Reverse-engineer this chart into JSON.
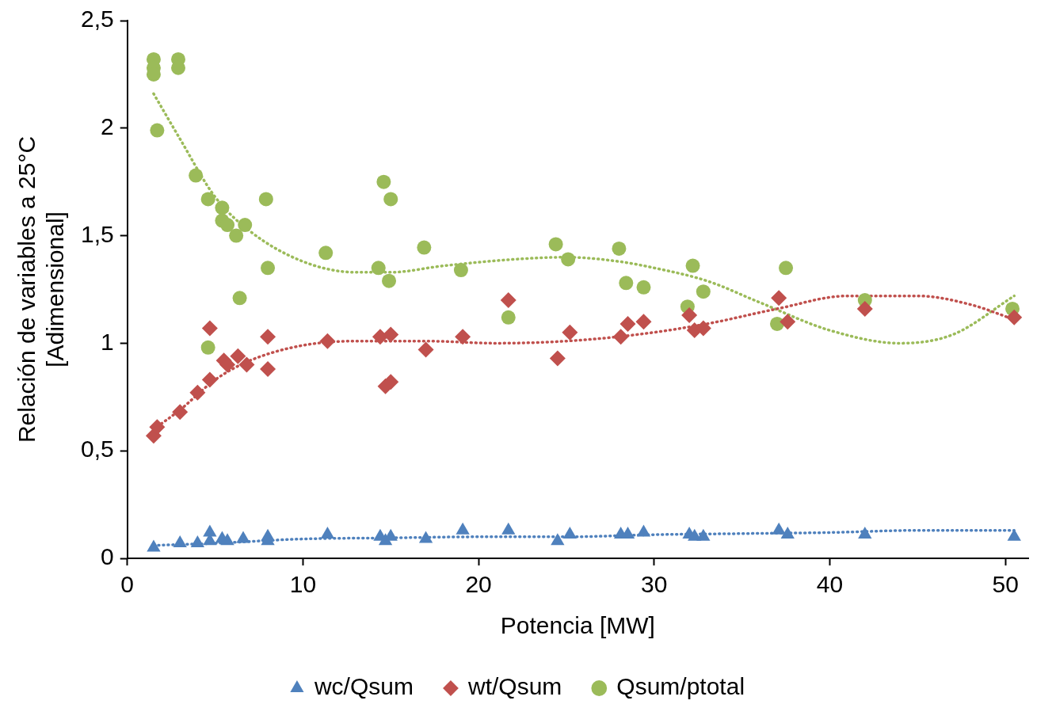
{
  "chart_data": {
    "type": "scatter",
    "xlabel": "Potencia [MW]",
    "ylabel": "Relación de variables a 25°C\n[Adimensional]",
    "xlim": [
      0,
      51.3
    ],
    "xticks": [
      0,
      10,
      20,
      30,
      40,
      50
    ],
    "ylim": [
      0,
      2.5
    ],
    "yticks": [
      0,
      {
        "value": 0.5,
        "label": "0,5"
      },
      1,
      {
        "value": 1.5,
        "label": "1,5"
      },
      2,
      {
        "value": 2.5,
        "label": "2,5"
      }
    ],
    "grid": false,
    "legend": "bottom",
    "series": [
      {
        "name": "wc/Qsum",
        "color": "#4f81bd",
        "marker": "triangle",
        "x": [
          1.5,
          3.0,
          4.0,
          4.7,
          4.7,
          5.4,
          5.7,
          6.6,
          8.0,
          8.0,
          11.4,
          14.4,
          14.7,
          15.0,
          17.0,
          19.1,
          21.7,
          24.5,
          25.2,
          28.1,
          28.5,
          29.4,
          32.0,
          32.3,
          32.8,
          37.1,
          37.6,
          42.0,
          50.5
        ],
        "values": [
          0.05,
          0.07,
          0.07,
          0.12,
          0.08,
          0.09,
          0.08,
          0.09,
          0.1,
          0.08,
          0.11,
          0.1,
          0.08,
          0.1,
          0.09,
          0.13,
          0.13,
          0.08,
          0.11,
          0.11,
          0.11,
          0.12,
          0.11,
          0.1,
          0.1,
          0.13,
          0.11,
          0.11,
          0.1
        ]
      },
      {
        "name": "wt/Qsum",
        "color": "#c0504d",
        "marker": "diamond",
        "x": [
          1.5,
          1.7,
          3.0,
          4.0,
          4.7,
          4.7,
          5.5,
          5.7,
          6.3,
          6.8,
          8.0,
          8.0,
          11.4,
          14.4,
          14.7,
          15.0,
          15.0,
          17.0,
          19.1,
          21.7,
          24.5,
          25.2,
          28.1,
          28.5,
          29.4,
          32.0,
          32.3,
          32.8,
          37.1,
          37.6,
          42.0,
          50.5
        ],
        "values": [
          0.57,
          0.61,
          0.68,
          0.77,
          0.83,
          1.07,
          0.92,
          0.9,
          0.94,
          0.9,
          1.03,
          0.88,
          1.01,
          1.03,
          0.8,
          0.82,
          1.04,
          0.97,
          1.03,
          1.2,
          0.93,
          1.05,
          1.03,
          1.09,
          1.1,
          1.13,
          1.06,
          1.07,
          1.21,
          1.1,
          1.16,
          1.12
        ]
      },
      {
        "name": "Qsum/ptotal",
        "color": "#9bbb59",
        "marker": "circle",
        "x": [
          1.5,
          1.5,
          1.5,
          2.9,
          2.9,
          1.7,
          3.9,
          4.6,
          5.4,
          5.4,
          5.7,
          6.2,
          6.7,
          7.9,
          8.0,
          6.4,
          4.6,
          11.3,
          14.3,
          14.6,
          15.0,
          14.9,
          16.9,
          19.0,
          21.7,
          24.4,
          25.1,
          28.0,
          28.4,
          29.4,
          32.2,
          31.9,
          32.8,
          37.5,
          37.0,
          42.0,
          50.4
        ],
        "values": [
          2.32,
          2.28,
          2.25,
          2.32,
          2.28,
          1.99,
          1.78,
          1.67,
          1.63,
          1.57,
          1.55,
          1.5,
          1.55,
          1.67,
          1.35,
          1.21,
          0.98,
          1.42,
          1.35,
          1.75,
          1.67,
          1.29,
          1.445,
          1.34,
          1.12,
          1.46,
          1.39,
          1.44,
          1.28,
          1.26,
          1.36,
          1.17,
          1.24,
          1.35,
          1.09,
          1.2,
          1.16
        ]
      },
      {
        "type": "line",
        "color": "#4f81bd",
        "marker": "none",
        "line_style": "dotted",
        "x": [
          1.5,
          5,
          10,
          15,
          20,
          25,
          30,
          35,
          40,
          45,
          50.5
        ],
        "values": [
          0.06,
          0.07,
          0.09,
          0.095,
          0.1,
          0.1,
          0.11,
          0.115,
          0.12,
          0.13,
          0.13
        ]
      },
      {
        "type": "line",
        "color": "#c0504d",
        "marker": "none",
        "line_style": "dotted",
        "x": [
          1.5,
          3,
          5,
          7,
          10,
          13,
          17,
          21,
          25,
          29,
          33,
          37,
          41,
          45,
          48,
          50.5
        ],
        "values": [
          0.6,
          0.69,
          0.83,
          0.92,
          0.99,
          1.01,
          1.01,
          1.0,
          1.01,
          1.04,
          1.09,
          1.16,
          1.22,
          1.22,
          1.18,
          1.11
        ]
      },
      {
        "type": "line",
        "color": "#9bbb59",
        "marker": "none",
        "line_style": "dotted",
        "x": [
          1.5,
          3,
          5,
          7,
          10,
          13,
          15,
          18,
          22,
          25,
          28,
          30,
          33,
          36,
          40,
          44,
          47,
          50.5
        ],
        "values": [
          2.16,
          1.95,
          1.68,
          1.52,
          1.38,
          1.33,
          1.33,
          1.36,
          1.39,
          1.4,
          1.38,
          1.35,
          1.29,
          1.19,
          1.06,
          1.0,
          1.04,
          1.22
        ]
      }
    ]
  }
}
